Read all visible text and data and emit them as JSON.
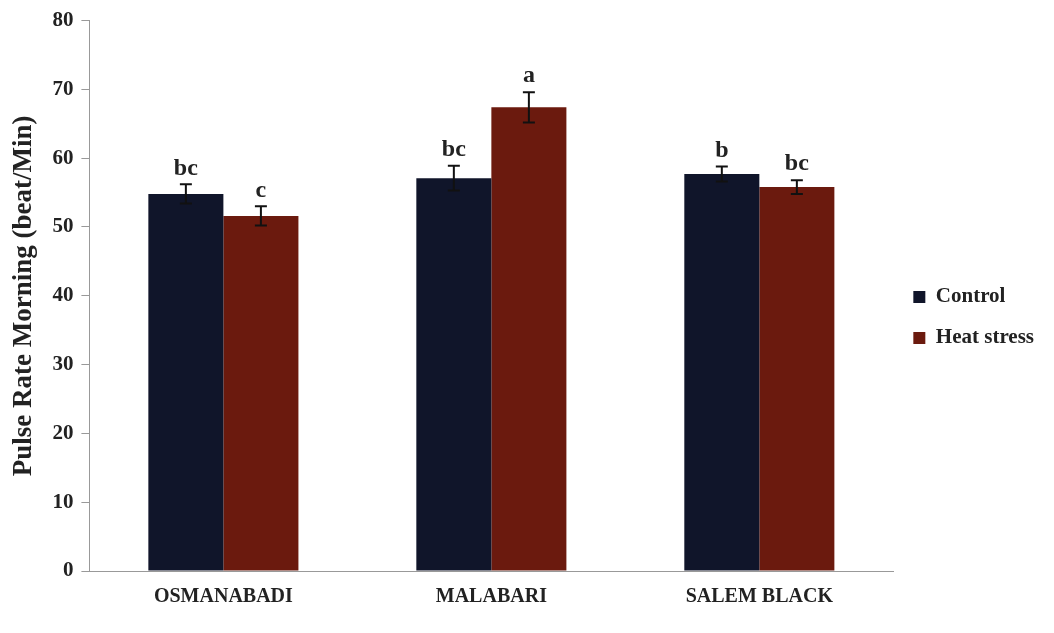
{
  "chart_data": {
    "type": "bar",
    "ylabel": "Pulse Rate Morning (beat/Min)",
    "categories": [
      "OSMANABADI",
      "MALABARI",
      "SALEM BLACK"
    ],
    "series": [
      {
        "name": "Control",
        "color": "#10152a",
        "values": [
          54.8,
          57.1,
          57.7
        ],
        "errors": [
          1.4,
          1.8,
          1.1
        ],
        "value_labels": [
          "bc",
          "bc",
          "b"
        ]
      },
      {
        "name": "Heat stress",
        "color": "#6b1a0e",
        "values": [
          51.6,
          67.4,
          55.8
        ],
        "errors": [
          1.4,
          2.2,
          1.0
        ],
        "value_labels": [
          "c",
          "a",
          "bc"
        ]
      }
    ],
    "ylim": [
      0,
      80
    ],
    "yticks": [
      0,
      10,
      20,
      30,
      40,
      50,
      60,
      70,
      80
    ],
    "grid": false,
    "legend": "right"
  }
}
